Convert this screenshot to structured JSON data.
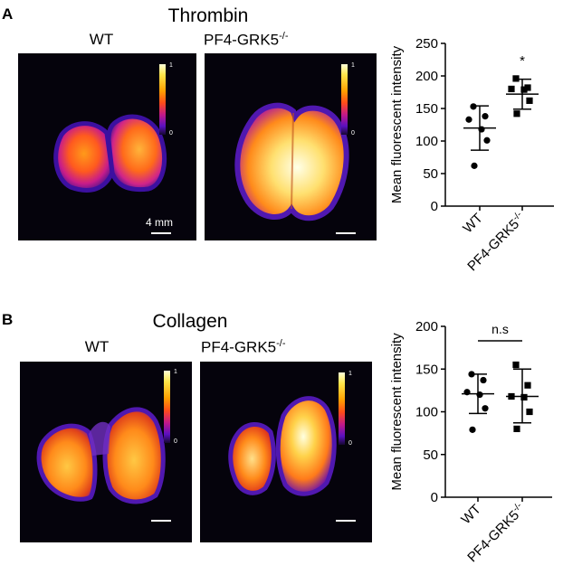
{
  "panels": [
    {
      "letter": "A",
      "title": "Thrombin",
      "image_labels": [
        "WT",
        "PF4-GRK5",
        "-/-"
      ],
      "scale_bar_label": "4 mm",
      "colorbar_max": "1",
      "colorbar_min": "0",
      "sig_label": "*"
    },
    {
      "letter": "B",
      "title": "Collagen",
      "image_labels": [
        "WT",
        "PF4-GRK5",
        "-/-"
      ],
      "colorbar_max": "1",
      "colorbar_min": "0",
      "sig_label": "n.s"
    }
  ],
  "chart_data": [
    {
      "type": "scatter",
      "title": "Thrombin",
      "ylabel": "Mean fluorescent intensity",
      "xlabel": "",
      "ylim": [
        0,
        250
      ],
      "yticks": [
        0,
        50,
        100,
        150,
        200,
        250
      ],
      "categories": [
        "WT",
        "PF4-GRK5-/-"
      ],
      "series": [
        {
          "category": "WT",
          "marker": "circle",
          "values": [
            153,
            138,
            133,
            118,
            101,
            62
          ],
          "mean": 120,
          "sd_low": 86,
          "sd_high": 154
        },
        {
          "category": "PF4-GRK5-/-",
          "marker": "square",
          "values": [
            196,
            182,
            180,
            179,
            162,
            142
          ],
          "mean": 172,
          "sd_low": 149,
          "sd_high": 195
        }
      ],
      "annotation": "*"
    },
    {
      "type": "scatter",
      "title": "Collagen",
      "ylabel": "Mean fluorescent intensity",
      "xlabel": "",
      "ylim": [
        0,
        200
      ],
      "yticks": [
        0,
        50,
        100,
        150,
        200
      ],
      "categories": [
        "WT",
        "PF4-GRK5-/-"
      ],
      "series": [
        {
          "category": "WT",
          "marker": "circle",
          "values": [
            144,
            137,
            123,
            120,
            104,
            79
          ],
          "mean": 121,
          "sd_low": 98,
          "sd_high": 144
        },
        {
          "category": "PF4-GRK5-/-",
          "marker": "square",
          "values": [
            155,
            131,
            118,
            117,
            100,
            80
          ],
          "mean": 118,
          "sd_low": 87,
          "sd_high": 150
        }
      ],
      "annotation": "n.s"
    }
  ],
  "colors": {
    "image_background": "#05030c",
    "marker": "#000000"
  }
}
